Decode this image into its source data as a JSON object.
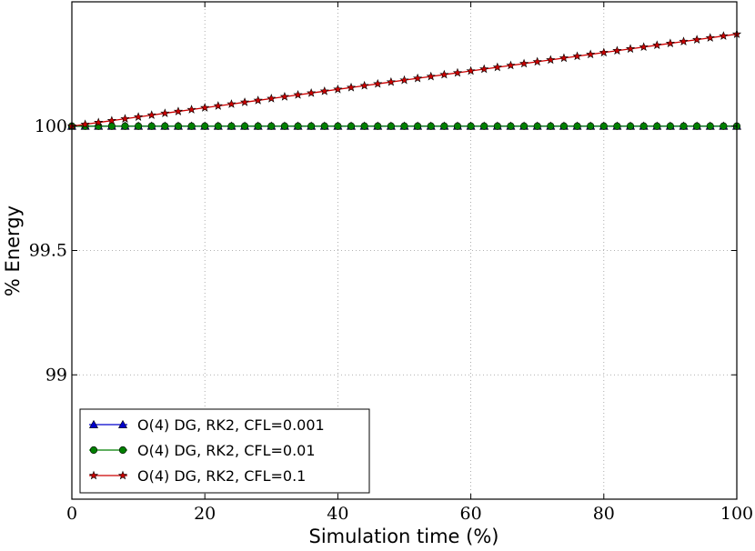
{
  "chart_data": {
    "type": "line",
    "xlabel": "Simulation time (%)",
    "ylabel": "% Energy",
    "xlim": [
      0,
      100
    ],
    "ylim": [
      98.5,
      100.5
    ],
    "xticks": [
      "0",
      "20",
      "40",
      "60",
      "80",
      "100"
    ],
    "yticks": [
      "99",
      "99.5",
      "100"
    ],
    "grid": true,
    "legend_position": "lower-left",
    "x": [
      0,
      2,
      4,
      6,
      8,
      10,
      12,
      14,
      16,
      18,
      20,
      22,
      24,
      26,
      28,
      30,
      32,
      34,
      36,
      38,
      40,
      42,
      44,
      46,
      48,
      50,
      52,
      54,
      56,
      58,
      60,
      62,
      64,
      66,
      68,
      70,
      72,
      74,
      76,
      78,
      80,
      82,
      84,
      86,
      88,
      90,
      92,
      94,
      96,
      98,
      100
    ],
    "series": [
      {
        "name": "O(4) DG, RK2, CFL=0.001",
        "color": "#0000cc",
        "marker": "triangle",
        "values": [
          100,
          100,
          100,
          100,
          100,
          100,
          100,
          100,
          100,
          100,
          100,
          100,
          100,
          100,
          100,
          100,
          100,
          100,
          100,
          100,
          100,
          100,
          100,
          100,
          100,
          100,
          100,
          100,
          100,
          100,
          100,
          100,
          100,
          100,
          100,
          100,
          100,
          100,
          100,
          100,
          100,
          100,
          100,
          100,
          100,
          100,
          100,
          100,
          100,
          100,
          100
        ]
      },
      {
        "name": "O(4) DG, RK2, CFL=0.01",
        "color": "#007f00",
        "marker": "circle",
        "values": [
          100,
          100,
          100,
          100,
          100,
          100,
          100,
          100,
          100,
          100,
          100,
          100,
          100,
          100,
          100,
          100,
          100,
          100,
          100,
          100,
          100,
          100,
          100,
          100,
          100,
          100,
          100,
          100,
          100,
          100,
          100,
          100,
          100,
          100,
          100,
          100,
          100,
          100,
          100,
          100,
          100,
          100,
          100,
          100,
          100,
          100,
          100,
          100,
          100,
          100,
          100
        ]
      },
      {
        "name": "O(4) DG, RK2, CFL=0.1",
        "color": "#cc0000",
        "marker": "star",
        "values": [
          100,
          100.0074,
          100.0148,
          100.0222,
          100.0296,
          100.037,
          100.0444,
          100.0518,
          100.0592,
          100.0666,
          100.074,
          100.0814,
          100.0888,
          100.0962,
          100.1036,
          100.111,
          100.1184,
          100.1258,
          100.1332,
          100.1406,
          100.148,
          100.1554,
          100.1628,
          100.1702,
          100.1776,
          100.185,
          100.1924,
          100.1998,
          100.2072,
          100.2146,
          100.222,
          100.2294,
          100.2368,
          100.2442,
          100.2516,
          100.259,
          100.2664,
          100.2738,
          100.2812,
          100.2886,
          100.296,
          100.3034,
          100.3108,
          100.3182,
          100.3256,
          100.333,
          100.3404,
          100.3478,
          100.3552,
          100.3626,
          100.37
        ]
      }
    ]
  }
}
